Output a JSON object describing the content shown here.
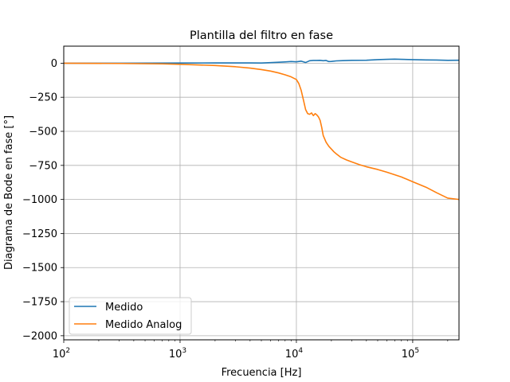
{
  "chart_data": {
    "type": "line",
    "title": "Plantilla del filtro en fase",
    "xlabel": "Frecuencia [Hz]",
    "ylabel": "Diagrama de Bode en fase [°]",
    "xscale": "log",
    "xlim": [
      100,
      250000
    ],
    "ylim": [
      -2030,
      125
    ],
    "grid": true,
    "legend_position": "lower-left",
    "x_ticks": [
      {
        "value": 100,
        "base": "10",
        "exp": "2"
      },
      {
        "value": 1000,
        "base": "10",
        "exp": "3"
      },
      {
        "value": 10000,
        "base": "10",
        "exp": "4"
      },
      {
        "value": 100000,
        "base": "10",
        "exp": "5"
      }
    ],
    "y_ticks": [
      {
        "value": 0,
        "label": "0"
      },
      {
        "value": -250,
        "label": "−250"
      },
      {
        "value": -500,
        "label": "−500"
      },
      {
        "value": -750,
        "label": "−750"
      },
      {
        "value": -1000,
        "label": "−1000"
      },
      {
        "value": -1250,
        "label": "−1250"
      },
      {
        "value": -1500,
        "label": "−1500"
      },
      {
        "value": -1750,
        "label": "−1750"
      },
      {
        "value": -2000,
        "label": "−2000"
      }
    ],
    "series": [
      {
        "name": "Medido",
        "color": "#1f77b4",
        "x": [
          100,
          300,
          1000,
          2000,
          4000,
          5000,
          6000,
          8000,
          9000,
          10000,
          11000,
          12000,
          13000,
          14000,
          15000,
          16000,
          17000,
          18000,
          19000,
          20000,
          22000,
          25000,
          30000,
          40000,
          50000,
          60000,
          70000,
          80000,
          100000,
          130000,
          160000,
          200000,
          250000
        ],
        "y": [
          0,
          0,
          1,
          2,
          2,
          1,
          4,
          9,
          12,
          10,
          15,
          5,
          18,
          20,
          20,
          21,
          18,
          20,
          12,
          13,
          17,
          19,
          21,
          22,
          26,
          28,
          30,
          28,
          26,
          24,
          23,
          21,
          22
        ]
      },
      {
        "name": "Medido Analog",
        "color": "#ff7f0e",
        "x": [
          100,
          300,
          700,
          1000,
          2000,
          3000,
          4000,
          5000,
          6000,
          7000,
          8000,
          9000,
          10000,
          10500,
          11000,
          11500,
          12000,
          12500,
          13000,
          13500,
          14000,
          14500,
          15000,
          15500,
          16000,
          16500,
          17000,
          18000,
          19000,
          20000,
          21000,
          22000,
          24000,
          27000,
          30000,
          35000,
          40000,
          50000,
          60000,
          80000,
          100000,
          130000,
          160000,
          200000,
          250000
        ],
        "y": [
          0,
          -2,
          -5,
          -8,
          -17,
          -26,
          -36,
          -47,
          -58,
          -71,
          -85,
          -100,
          -120,
          -150,
          -200,
          -270,
          -340,
          -370,
          -375,
          -365,
          -385,
          -370,
          -380,
          -395,
          -420,
          -470,
          -530,
          -580,
          -610,
          -630,
          -650,
          -665,
          -690,
          -710,
          -725,
          -745,
          -760,
          -780,
          -800,
          -835,
          -870,
          -910,
          -950,
          -990,
          -1000
        ]
      }
    ]
  }
}
